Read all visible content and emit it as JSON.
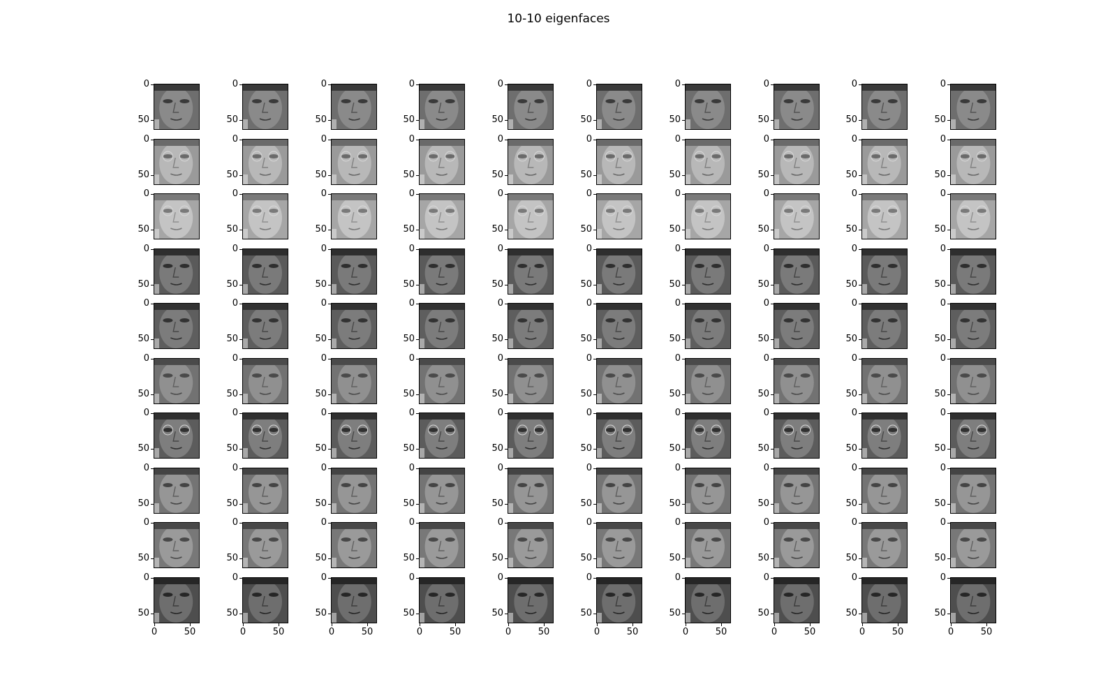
{
  "figure": {
    "title": "10-10 eigenfaces"
  },
  "grid": {
    "rows": 10,
    "cols": 10
  },
  "axes": {
    "y_ticks": [
      "0",
      "50"
    ],
    "x_ticks": [
      "0",
      "50"
    ]
  },
  "rows": [
    {
      "tone": "#6e6e6e",
      "skin": "#8a8a8a",
      "hair": "#3a3a3a",
      "glasses": false
    },
    {
      "tone": "#9a9a9a",
      "skin": "#b8b8b8",
      "hair": "#6a6a6a",
      "glasses": true
    },
    {
      "tone": "#a6a6a6",
      "skin": "#c4c4c4",
      "hair": "#7a7a7a",
      "glasses": true
    },
    {
      "tone": "#5a5a5a",
      "skin": "#7a7a7a",
      "hair": "#2e2e2e",
      "glasses": false
    },
    {
      "tone": "#5e5e5e",
      "skin": "#7c7c7c",
      "hair": "#323232",
      "glasses": false
    },
    {
      "tone": "#727272",
      "skin": "#909090",
      "hair": "#4a4a4a",
      "glasses": false
    },
    {
      "tone": "#5c5c5c",
      "skin": "#7e7e7e",
      "hair": "#303030",
      "glasses": true
    },
    {
      "tone": "#747474",
      "skin": "#969696",
      "hair": "#444444",
      "glasses": false
    },
    {
      "tone": "#787878",
      "skin": "#9a9a9a",
      "hair": "#484848",
      "glasses": false
    },
    {
      "tone": "#4e4e4e",
      "skin": "#6e6e6e",
      "hair": "#262626",
      "glasses": false
    }
  ]
}
